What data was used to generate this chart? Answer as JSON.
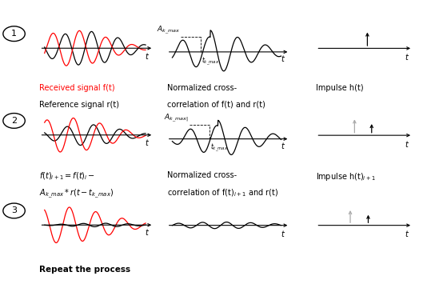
{
  "background_color": "#ffffff",
  "row1": {
    "signal1_color": "#ff0000",
    "signal2_color": "#000000",
    "ncc_color": "#000000",
    "impulse_color": "#000000",
    "label_received": "Received signal f(t)",
    "label_reference": "Reference signal r(t)",
    "label_ncc_line1": "Normalized cross-",
    "label_ncc_line2": "correlation of f(t) and r(t)",
    "label_impulse": "Impulse h(t)"
  },
  "row2": {
    "signal1_color": "#ff0000",
    "signal2_color": "#000000",
    "ncc_color": "#000000",
    "impulse1_color": "#aaaaaa",
    "impulse2_color": "#000000",
    "label_line1": "f(t)",
    "label_ncc_line1": "Normalized cross-",
    "label_ncc_line2": "correlation of f(t)",
    "label_ncc_sub": "i+1",
    "label_ncc_line3": " and r(t)",
    "label_impulse_line1": "Impulse h(t)",
    "label_impulse_sub": "i+1"
  },
  "row3": {
    "signal1_color": "#ff0000",
    "signal2_color": "#000000",
    "ncc_color": "#000000",
    "impulse1_color": "#aaaaaa",
    "impulse2_color": "#000000",
    "label": "Repeat the process"
  },
  "fontsize_label": 7.0,
  "fontsize_annot": 6.5,
  "fontsize_t": 7.0,
  "fontsize_circle": 8
}
